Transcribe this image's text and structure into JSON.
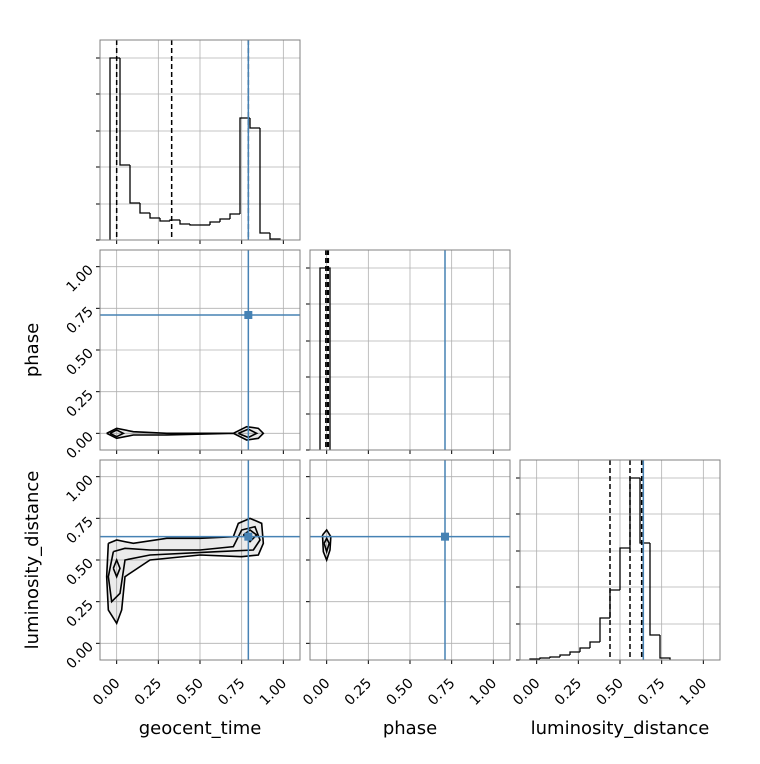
{
  "chart_data": {
    "type": "corner",
    "parameters": [
      "geocent_time",
      "phase",
      "luminosity_distance"
    ],
    "truths": [
      0.79,
      0.71,
      0.64
    ],
    "truth_color": "#4682b4",
    "xlim": [
      -0.1,
      1.1
    ],
    "ylim": [
      -0.1,
      1.1
    ],
    "xticks": [
      {
        "value": 0,
        "label": "0.00"
      },
      {
        "value": 0.25,
        "label": "0.25"
      },
      {
        "value": 0.5,
        "label": "0.50"
      },
      {
        "value": 0.75,
        "label": "0.75"
      },
      {
        "value": 1,
        "label": "1.00"
      }
    ],
    "yticks": [
      {
        "value": 0,
        "label": "0.00"
      },
      {
        "value": 0.25,
        "label": "0.25"
      },
      {
        "value": 0.5,
        "label": "0.50"
      },
      {
        "value": 0.75,
        "label": "0.75"
      },
      {
        "value": 1,
        "label": "1.00"
      }
    ],
    "hist_ylim": [
      0,
      200
    ],
    "hist_yticks": [
      0,
      36,
      73,
      109,
      146,
      182
    ],
    "grid": true,
    "histograms": [
      {
        "bins": [
          -0.04,
          0.02,
          0.08,
          0.14,
          0.2,
          0.26,
          0.32,
          0.38,
          0.44,
          0.5,
          0.56,
          0.62,
          0.68,
          0.74,
          0.8,
          0.86,
          0.92,
          0.98
        ],
        "counts": [
          182,
          75,
          37,
          27,
          22,
          19,
          20,
          16,
          15,
          15,
          18,
          21,
          26,
          122,
          112,
          7,
          1
        ],
        "quantiles": [
          0.0,
          0.33,
          0.79
        ]
      },
      {
        "bins": [
          -0.04,
          0.0,
          0.02
        ],
        "counts": [
          182,
          182
        ],
        "quantiles": [
          -0.005,
          0.005,
          0.01
        ]
      },
      {
        "bins": [
          -0.04,
          0.02,
          0.08,
          0.14,
          0.2,
          0.26,
          0.32,
          0.38,
          0.44,
          0.5,
          0.56,
          0.62,
          0.68,
          0.74,
          0.8
        ],
        "counts": [
          1,
          2,
          3,
          5,
          8,
          12,
          18,
          42,
          70,
          112,
          182,
          117,
          25,
          2
        ],
        "quantiles": [
          0.44,
          0.56,
          0.63
        ]
      }
    ],
    "contours": [
      [
        {
          "x": [
            -0.06,
            0.0,
            0.1,
            0.3,
            0.7,
            0.78,
            0.85,
            0.88,
            0.85,
            0.78,
            0.7,
            0.3,
            0.1,
            0.0,
            -0.06
          ],
          "y": [
            0,
            0.03,
            0.01,
            0.0,
            0.0,
            0.04,
            0.03,
            0,
            -0.03,
            -0.04,
            0,
            -0.01,
            -0.01,
            -0.03,
            0
          ]
        },
        {
          "x": [
            -0.04,
            0.0,
            0.04,
            0.0,
            -0.04
          ],
          "y": [
            0,
            0.02,
            0,
            -0.02,
            0
          ]
        },
        {
          "x": [
            0.73,
            0.79,
            0.84,
            0.79,
            0.73
          ],
          "y": [
            0,
            0.025,
            0,
            -0.025,
            0
          ]
        }
      ],
      [
        {
          "x": [
            -0.05,
            0.0,
            0.1,
            0.3,
            0.5,
            0.7,
            0.73,
            0.8,
            0.87,
            0.88,
            0.85,
            0.75,
            0.5,
            0.2,
            0.05,
            0.03,
            0.0,
            -0.05,
            -0.06,
            -0.05
          ],
          "y": [
            0.6,
            0.62,
            0.6,
            0.63,
            0.63,
            0.64,
            0.72,
            0.75,
            0.72,
            0.6,
            0.53,
            0.52,
            0.53,
            0.5,
            0.4,
            0.2,
            0.12,
            0.2,
            0.4,
            0.6
          ]
        },
        {
          "x": [
            -0.02,
            0.05,
            0.2,
            0.5,
            0.7,
            0.75,
            0.83,
            0.86,
            0.82,
            0.6,
            0.2,
            0.05,
            0.02,
            -0.03,
            -0.05,
            -0.02
          ],
          "y": [
            0.55,
            0.57,
            0.56,
            0.56,
            0.58,
            0.68,
            0.7,
            0.62,
            0.56,
            0.55,
            0.53,
            0.5,
            0.3,
            0.25,
            0.4,
            0.55
          ]
        },
        {
          "x": [
            -0.02,
            0.0,
            0.02,
            0.0,
            -0.02
          ],
          "y": [
            0.45,
            0.5,
            0.45,
            0.4,
            0.45
          ]
        },
        {
          "x": [
            0.76,
            0.8,
            0.84,
            0.8,
            0.76
          ],
          "y": [
            0.65,
            0.68,
            0.65,
            0.61,
            0.65
          ]
        }
      ],
      [
        {
          "x": [
            -0.025,
            0.0,
            0.025,
            0.02,
            0.0,
            -0.02,
            -0.025
          ],
          "y": [
            0.65,
            0.68,
            0.64,
            0.56,
            0.5,
            0.55,
            0.65
          ]
        },
        {
          "x": [
            -0.015,
            0.0,
            0.015,
            0.0,
            -0.015
          ],
          "y": [
            0.6,
            0.63,
            0.6,
            0.55,
            0.6
          ]
        }
      ]
    ]
  }
}
